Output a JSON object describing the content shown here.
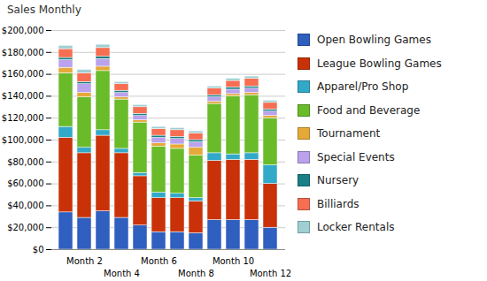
{
  "chart_data": {
    "type": "bar",
    "title": "Sales Monthly",
    "stacked": true,
    "grid": true,
    "legend": "right",
    "categories": [
      null,
      "Month 2",
      null,
      "Month 4",
      null,
      "Month 6",
      null,
      "Month 8",
      null,
      "Month 10",
      null,
      "Month 12"
    ],
    "ylim": [
      0,
      200000
    ],
    "yticks": [
      {
        "value": 0,
        "label": "$0"
      },
      {
        "value": 20000,
        "label": "$20,000"
      },
      {
        "value": 40000,
        "label": "$40,000"
      },
      {
        "value": 60000,
        "label": "$60,000"
      },
      {
        "value": 80000,
        "label": "$80,000"
      },
      {
        "value": 100000,
        "label": "$100,000"
      },
      {
        "value": 120000,
        "label": "$120,000"
      },
      {
        "value": 140000,
        "label": "$140,000"
      },
      {
        "value": 160000,
        "label": "$160,000"
      },
      {
        "value": 180000,
        "label": "$180,000"
      },
      {
        "value": 200000,
        "label": "$200,000"
      }
    ],
    "series": [
      {
        "name": "Open Bowling Games",
        "color": "#2f5fbf",
        "values": [
          34000,
          29000,
          35000,
          29000,
          22000,
          16000,
          16000,
          15000,
          27000,
          27000,
          27000,
          20000
        ]
      },
      {
        "name": "League Bowling Games",
        "color": "#c93208",
        "values": [
          68000,
          59000,
          69000,
          59000,
          45000,
          31000,
          31000,
          29000,
          54000,
          55000,
          55000,
          40000
        ]
      },
      {
        "name": "Apparel/Pro Shop",
        "color": "#33a9c9",
        "values": [
          10000,
          5000,
          5000,
          4000,
          3000,
          5000,
          4000,
          3000,
          7000,
          5000,
          6000,
          17000
        ]
      },
      {
        "name": "Food and Beverage",
        "color": "#6abb2a",
        "values": [
          49000,
          46000,
          54000,
          45000,
          46000,
          42000,
          41000,
          39000,
          45000,
          53000,
          53000,
          43000
        ]
      },
      {
        "name": "Tournament",
        "color": "#e5a93a",
        "values": [
          5000,
          4000,
          4000,
          2000,
          2000,
          3000,
          4000,
          7000,
          2000,
          2000,
          2000,
          2000
        ]
      },
      {
        "name": "Special Events",
        "color": "#baa2ec",
        "values": [
          7000,
          8000,
          7000,
          4000,
          4000,
          5000,
          5000,
          5000,
          4000,
          4000,
          4000,
          4000
        ]
      },
      {
        "name": "Nursery",
        "color": "#1a7f86",
        "values": [
          2000,
          2000,
          2000,
          2000,
          2000,
          2000,
          2000,
          2000,
          2000,
          2000,
          2000,
          2000
        ]
      },
      {
        "name": "Billiards",
        "color": "#f76e52",
        "values": [
          8000,
          8000,
          8000,
          6000,
          6000,
          6000,
          6000,
          6000,
          6000,
          6000,
          7000,
          6000
        ]
      },
      {
        "name": "Locker Rentals",
        "color": "#9fcfd3",
        "values": [
          3000,
          3000,
          3000,
          2000,
          2000,
          2000,
          2000,
          2000,
          2000,
          2000,
          2000,
          2000
        ]
      }
    ]
  }
}
